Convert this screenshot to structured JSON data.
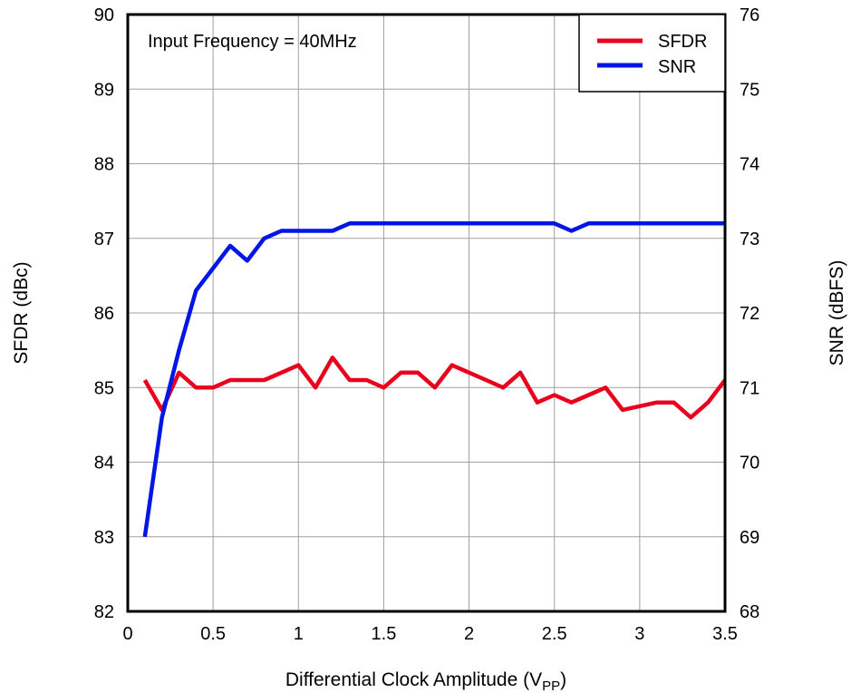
{
  "chart_data": {
    "type": "line",
    "annotation": "Input Frequency = 40MHz",
    "xlabel": "Differential Clock Amplitude (V",
    "xlabel_subscript": "PP",
    "xlabel_close": ")",
    "ylabel_left": "SFDR (dBc)",
    "ylabel_right": "SNR (dBFS)",
    "xlim": [
      0,
      3.5
    ],
    "ylim_left": [
      82,
      90
    ],
    "ylim_right": [
      68,
      76
    ],
    "x_ticks": [
      "0",
      "0.5",
      "1",
      "1.5",
      "2",
      "2.5",
      "3",
      "3.5"
    ],
    "x_tick_values": [
      0,
      0.5,
      1,
      1.5,
      2,
      2.5,
      3,
      3.5
    ],
    "y_left_ticks": [
      "82",
      "83",
      "84",
      "85",
      "86",
      "87",
      "88",
      "89",
      "90"
    ],
    "y_left_tick_values": [
      82,
      83,
      84,
      85,
      86,
      87,
      88,
      89,
      90
    ],
    "y_right_ticks": [
      "68",
      "69",
      "70",
      "71",
      "72",
      "73",
      "74",
      "75",
      "76"
    ],
    "y_right_tick_values": [
      68,
      69,
      70,
      71,
      72,
      73,
      74,
      75,
      76
    ],
    "grid": true,
    "legend_position": "top-right",
    "series": [
      {
        "name": "SFDR",
        "axis": "left",
        "color": "#e8001c",
        "x": [
          0.1,
          0.2,
          0.3,
          0.4,
          0.5,
          0.6,
          0.7,
          0.8,
          0.9,
          1.0,
          1.1,
          1.2,
          1.3,
          1.4,
          1.5,
          1.6,
          1.7,
          1.8,
          1.9,
          2.0,
          2.1,
          2.2,
          2.3,
          2.4,
          2.5,
          2.6,
          2.7,
          2.8,
          2.9,
          3.0,
          3.1,
          3.2,
          3.3,
          3.4,
          3.5
        ],
        "values": [
          85.1,
          84.7,
          85.2,
          85.0,
          85.0,
          85.1,
          85.1,
          85.1,
          85.2,
          85.3,
          85.0,
          85.4,
          85.1,
          85.1,
          85.0,
          85.2,
          85.2,
          85.0,
          85.3,
          85.2,
          85.1,
          85.0,
          85.2,
          84.8,
          84.9,
          84.8,
          84.9,
          85.0,
          84.7,
          84.75,
          84.8,
          84.8,
          84.6,
          84.8,
          85.1
        ]
      },
      {
        "name": "SNR",
        "axis": "right",
        "color": "#0016e6",
        "x": [
          0.1,
          0.2,
          0.3,
          0.4,
          0.5,
          0.6,
          0.7,
          0.8,
          0.9,
          1.0,
          1.1,
          1.2,
          1.3,
          1.4,
          1.5,
          1.6,
          1.7,
          1.8,
          1.9,
          2.0,
          2.1,
          2.2,
          2.3,
          2.4,
          2.5,
          2.6,
          2.7,
          2.8,
          2.9,
          3.0,
          3.1,
          3.2,
          3.3,
          3.4,
          3.5
        ],
        "values": [
          69.0,
          70.6,
          71.5,
          72.3,
          72.6,
          72.9,
          72.7,
          73.0,
          73.1,
          73.1,
          73.1,
          73.1,
          73.2,
          73.2,
          73.2,
          73.2,
          73.2,
          73.2,
          73.2,
          73.2,
          73.2,
          73.2,
          73.2,
          73.2,
          73.2,
          73.1,
          73.2,
          73.2,
          73.2,
          73.2,
          73.2,
          73.2,
          73.2,
          73.2,
          73.2
        ]
      }
    ]
  }
}
